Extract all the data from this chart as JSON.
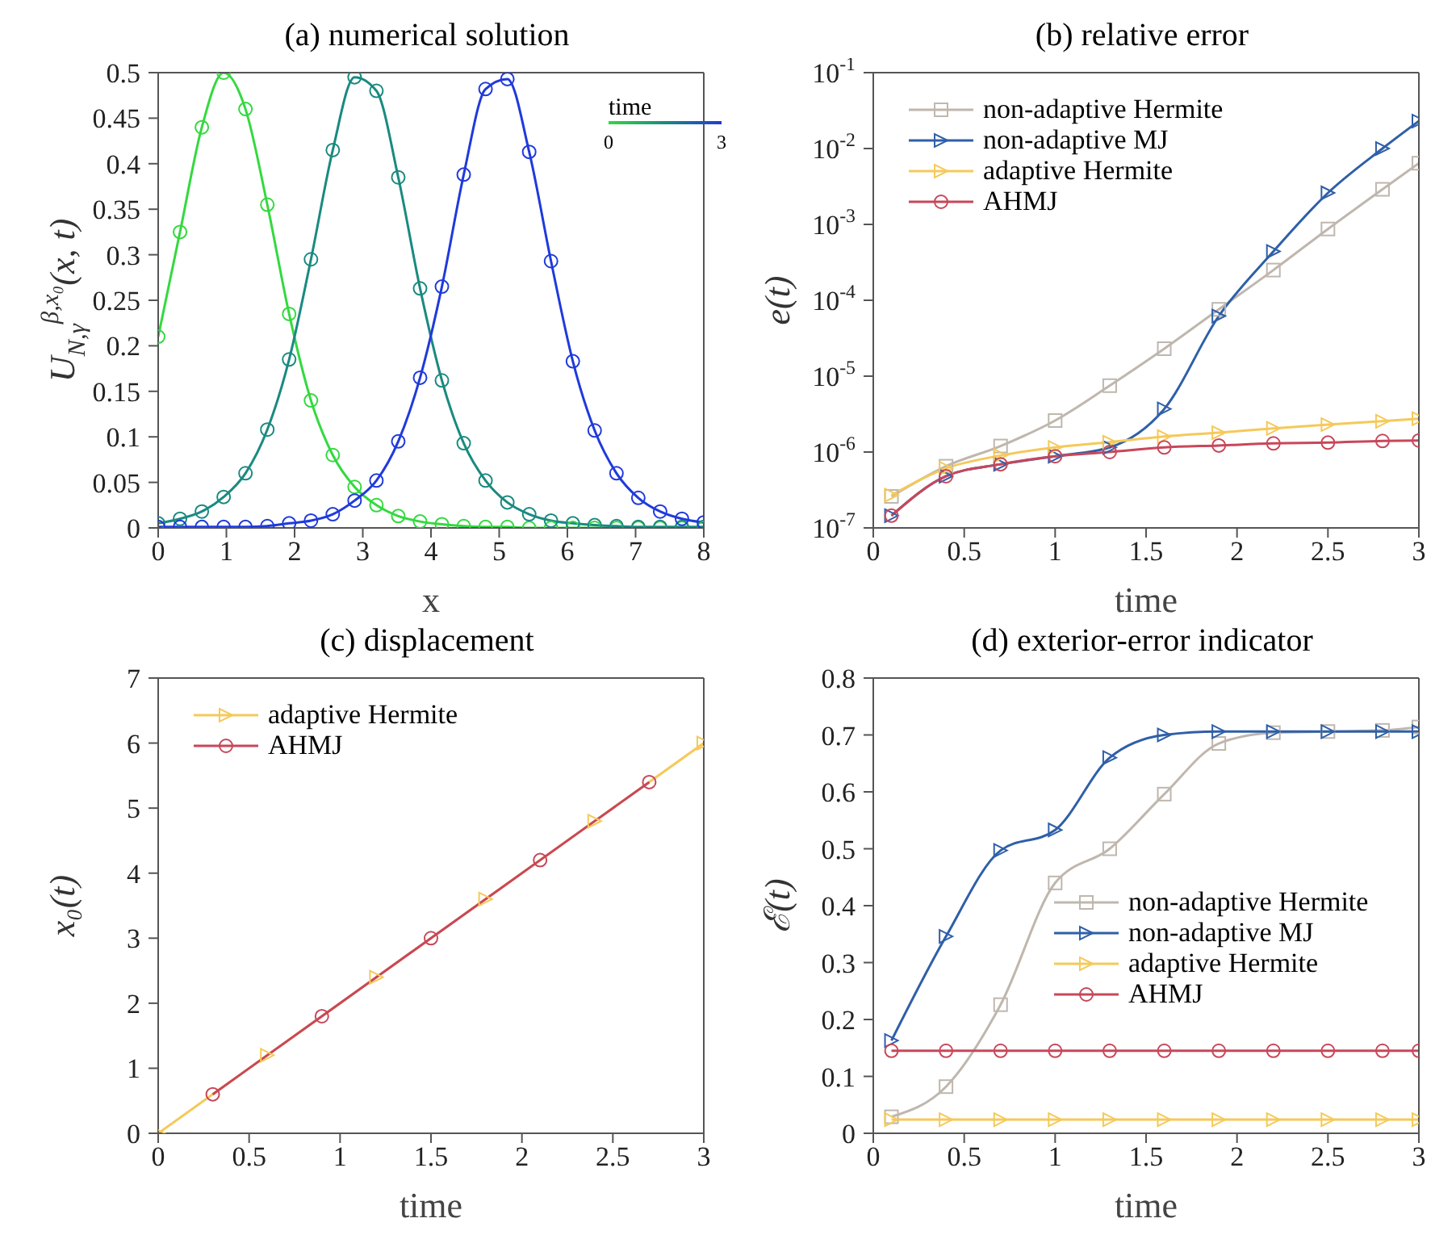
{
  "chart_data": [
    {
      "type": "line",
      "title": "(a) numerical solution",
      "xlabel": "x",
      "ylabel": "U$_{N,γ}$$^{β,x₀}$(x, t)",
      "xlim": [
        0,
        8
      ],
      "xticks": [
        0,
        1,
        2,
        3,
        4,
        5,
        6,
        7,
        8
      ],
      "ylim": [
        0,
        0.5
      ],
      "yticks": [
        0,
        0.05,
        0.1,
        0.15,
        0.2,
        0.25,
        0.3,
        0.35,
        0.4,
        0.45,
        0.5
      ],
      "marker": "circle",
      "annotations": [
        "time",
        "0",
        "3"
      ],
      "x": [
        0,
        0.32,
        0.64,
        0.96,
        1.28,
        1.6,
        1.92,
        2.24,
        2.56,
        2.88,
        3.2,
        3.52,
        3.84,
        4.16,
        4.48,
        4.8,
        5.12,
        5.44,
        5.76,
        6.08,
        6.4,
        6.72,
        7.04,
        7.36,
        7.68,
        8
      ],
      "series": [
        {
          "color": "#33d93f",
          "values": [
            0.21,
            0.325,
            0.44,
            0.5,
            0.46,
            0.355,
            0.235,
            0.14,
            0.08,
            0.045,
            0.025,
            0.013,
            0.007,
            0.004,
            0.002,
            0.001,
            0.001,
            0,
            0,
            0,
            0,
            0,
            0,
            0,
            0,
            0
          ]
        },
        {
          "color": "#1a8a80",
          "values": [
            0.005,
            0.01,
            0.018,
            0.034,
            0.06,
            0.108,
            0.185,
            0.295,
            0.415,
            0.495,
            0.48,
            0.385,
            0.263,
            0.162,
            0.093,
            0.052,
            0.028,
            0.015,
            0.008,
            0.005,
            0.003,
            0.002,
            0.001,
            0.001,
            0.001,
            0.001
          ]
        },
        {
          "color": "#1f3adb",
          "values": [
            0.001,
            0.001,
            0.001,
            0.001,
            0.001,
            0.002,
            0.005,
            0.008,
            0.015,
            0.03,
            0.052,
            0.095,
            0.165,
            0.265,
            0.388,
            0.482,
            0.493,
            0.413,
            0.293,
            0.183,
            0.107,
            0.06,
            0.033,
            0.018,
            0.01,
            0.006
          ]
        }
      ]
    },
    {
      "type": "line",
      "title": "(b) relative error",
      "xlabel": "time",
      "ylabel": "e(t)",
      "log": "y",
      "xlim": [
        0,
        3
      ],
      "xticks": [
        0,
        0.5,
        1,
        1.5,
        2,
        2.5,
        3
      ],
      "ylim": [
        1e-07,
        0.1
      ],
      "yticks": [
        {
          "value": 1e-07,
          "label": "10$^{-7}$"
        },
        {
          "value": 1e-06,
          "label": "10$^{-6}$"
        },
        {
          "value": 1e-05,
          "label": "10$^{-5}$"
        },
        {
          "value": 0.0001,
          "label": "10$^{-4}$"
        },
        {
          "value": 0.001,
          "label": "10$^{-3}$"
        },
        {
          "value": 0.01,
          "label": "10$^{-2}$"
        },
        {
          "value": 0.1,
          "label": "10$^{-1}$"
        }
      ],
      "legend": "top left",
      "x": [
        0.1,
        0.4,
        0.7,
        1,
        1.3,
        1.6,
        1.9,
        2.2,
        2.5,
        2.8,
        3
      ],
      "series": [
        {
          "name": "non-adaptive Hermite",
          "color": "#bfb7ae",
          "marker": "square",
          "values": [
            2.6e-07,
            6.5e-07,
            1.2e-06,
            2.6e-06,
            7.5e-06,
            2.3e-05,
            7.6e-05,
            0.00025,
            0.00087,
            0.0029,
            0.0064
          ]
        },
        {
          "name": "non-adaptive MJ",
          "color": "#2f5fa8",
          "marker": "triangle",
          "values": [
            1.45e-07,
            4.8e-07,
            6.9e-07,
            8.8e-07,
            1.15e-06,
            3.7e-06,
            6.2e-05,
            0.00044,
            0.0026,
            0.01,
            0.023
          ]
        },
        {
          "name": "adaptive Hermite",
          "color": "#f5c95a",
          "marker": "triangle",
          "values": [
            2.7e-07,
            6.1e-07,
            9e-07,
            1.15e-06,
            1.35e-06,
            1.6e-06,
            1.8e-06,
            2.05e-06,
            2.3e-06,
            2.55e-06,
            2.75e-06
          ]
        },
        {
          "name": "AHMJ",
          "color": "#c8475a",
          "marker": "circle",
          "values": [
            1.45e-07,
            4.8e-07,
            6.9e-07,
            8.8e-07,
            1e-06,
            1.15e-06,
            1.22e-06,
            1.3e-06,
            1.33e-06,
            1.4e-06,
            1.42e-06
          ]
        }
      ]
    },
    {
      "type": "line",
      "title": "(c) displacement",
      "xlabel": "time",
      "ylabel": "x₀(t)",
      "xlim": [
        0,
        3
      ],
      "xticks": [
        0,
        0.5,
        1,
        1.5,
        2,
        2.5,
        3
      ],
      "ylim": [
        0,
        7
      ],
      "yticks": [
        0,
        1,
        2,
        3,
        4,
        5,
        6,
        7
      ],
      "legend": "top left",
      "series": [
        {
          "name": "adaptive Hermite",
          "color": "#f5c95a",
          "marker": "triangle",
          "x": [
            0,
            0.6,
            1.2,
            1.8,
            2.4,
            3
          ],
          "values": [
            0,
            1.2,
            2.4,
            3.6,
            4.8,
            6
          ]
        },
        {
          "name": "AHMJ",
          "color": "#c8475a",
          "marker": "circle",
          "x": [
            0.3,
            0.9,
            1.5,
            2.1,
            2.7
          ],
          "values": [
            0.6,
            1.8,
            3,
            4.2,
            5.4
          ]
        }
      ]
    },
    {
      "type": "line",
      "title": "(d) exterior-error indicator",
      "xlabel": "time",
      "ylabel": "ℰ(t)",
      "xlim": [
        0,
        3
      ],
      "xticks": [
        0,
        0.5,
        1,
        1.5,
        2,
        2.5,
        3
      ],
      "ylim": [
        0,
        0.8
      ],
      "yticks": [
        0,
        0.1,
        0.2,
        0.3,
        0.4,
        0.5,
        0.6,
        0.7,
        0.8
      ],
      "legend": "right",
      "x": [
        0.1,
        0.4,
        0.7,
        1,
        1.3,
        1.6,
        1.9,
        2.2,
        2.5,
        2.8,
        3
      ],
      "series": [
        {
          "name": "non-adaptive Hermite",
          "color": "#bfb7ae",
          "marker": "square",
          "values": [
            0.029,
            0.082,
            0.226,
            0.44,
            0.5,
            0.596,
            0.685,
            0.704,
            0.706,
            0.708,
            0.714
          ]
        },
        {
          "name": "non-adaptive MJ",
          "color": "#2f5fa8",
          "marker": "triangle",
          "values": [
            0.163,
            0.346,
            0.497,
            0.533,
            0.66,
            0.7,
            0.706,
            0.706,
            0.706,
            0.706,
            0.706
          ]
        },
        {
          "name": "adaptive Hermite",
          "color": "#f5c95a",
          "marker": "triangle",
          "values": [
            0.024,
            0.024,
            0.024,
            0.024,
            0.024,
            0.024,
            0.024,
            0.024,
            0.024,
            0.024,
            0.024
          ]
        },
        {
          "name": "AHMJ",
          "color": "#c8475a",
          "marker": "circle",
          "values": [
            0.145,
            0.145,
            0.145,
            0.145,
            0.145,
            0.145,
            0.145,
            0.145,
            0.145,
            0.145,
            0.145
          ]
        }
      ]
    }
  ]
}
